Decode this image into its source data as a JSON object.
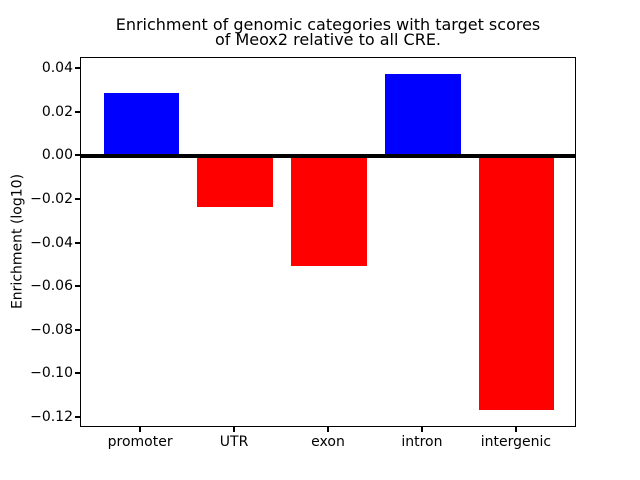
{
  "chart_data": {
    "type": "bar",
    "title": "Enrichment of genomic categories with target scores\nof Meox2 relative to all CRE.",
    "xlabel": "",
    "ylabel": "Enrichment (log10)",
    "categories": [
      "promoter",
      "UTR",
      "exon",
      "intron",
      "intergenic"
    ],
    "values": [
      0.0293,
      -0.023,
      -0.0502,
      0.0377,
      -0.1166
    ],
    "bar_colors": [
      "#0000ff",
      "#ff0000",
      "#ff0000",
      "#0000ff",
      "#ff0000"
    ],
    "positive_color": "#0000ff",
    "negative_color": "#ff0000",
    "ylim": [
      -0.1247,
      0.0452
    ],
    "yticks": [
      0.04,
      0.02,
      0.0,
      -0.02,
      -0.04,
      -0.06,
      -0.08,
      -0.1,
      -0.12
    ],
    "ytick_labels": [
      "0.04",
      "0.02",
      "0.00",
      "−0.02",
      "−0.04",
      "−0.06",
      "−0.08",
      "−0.10",
      "−0.12"
    ],
    "bar_width_fraction": 0.8,
    "x_margin_fraction": 0.05,
    "grid": false,
    "legend": null,
    "zero_line": true,
    "background_color": "#ffffff",
    "axis_color": "#000000"
  }
}
